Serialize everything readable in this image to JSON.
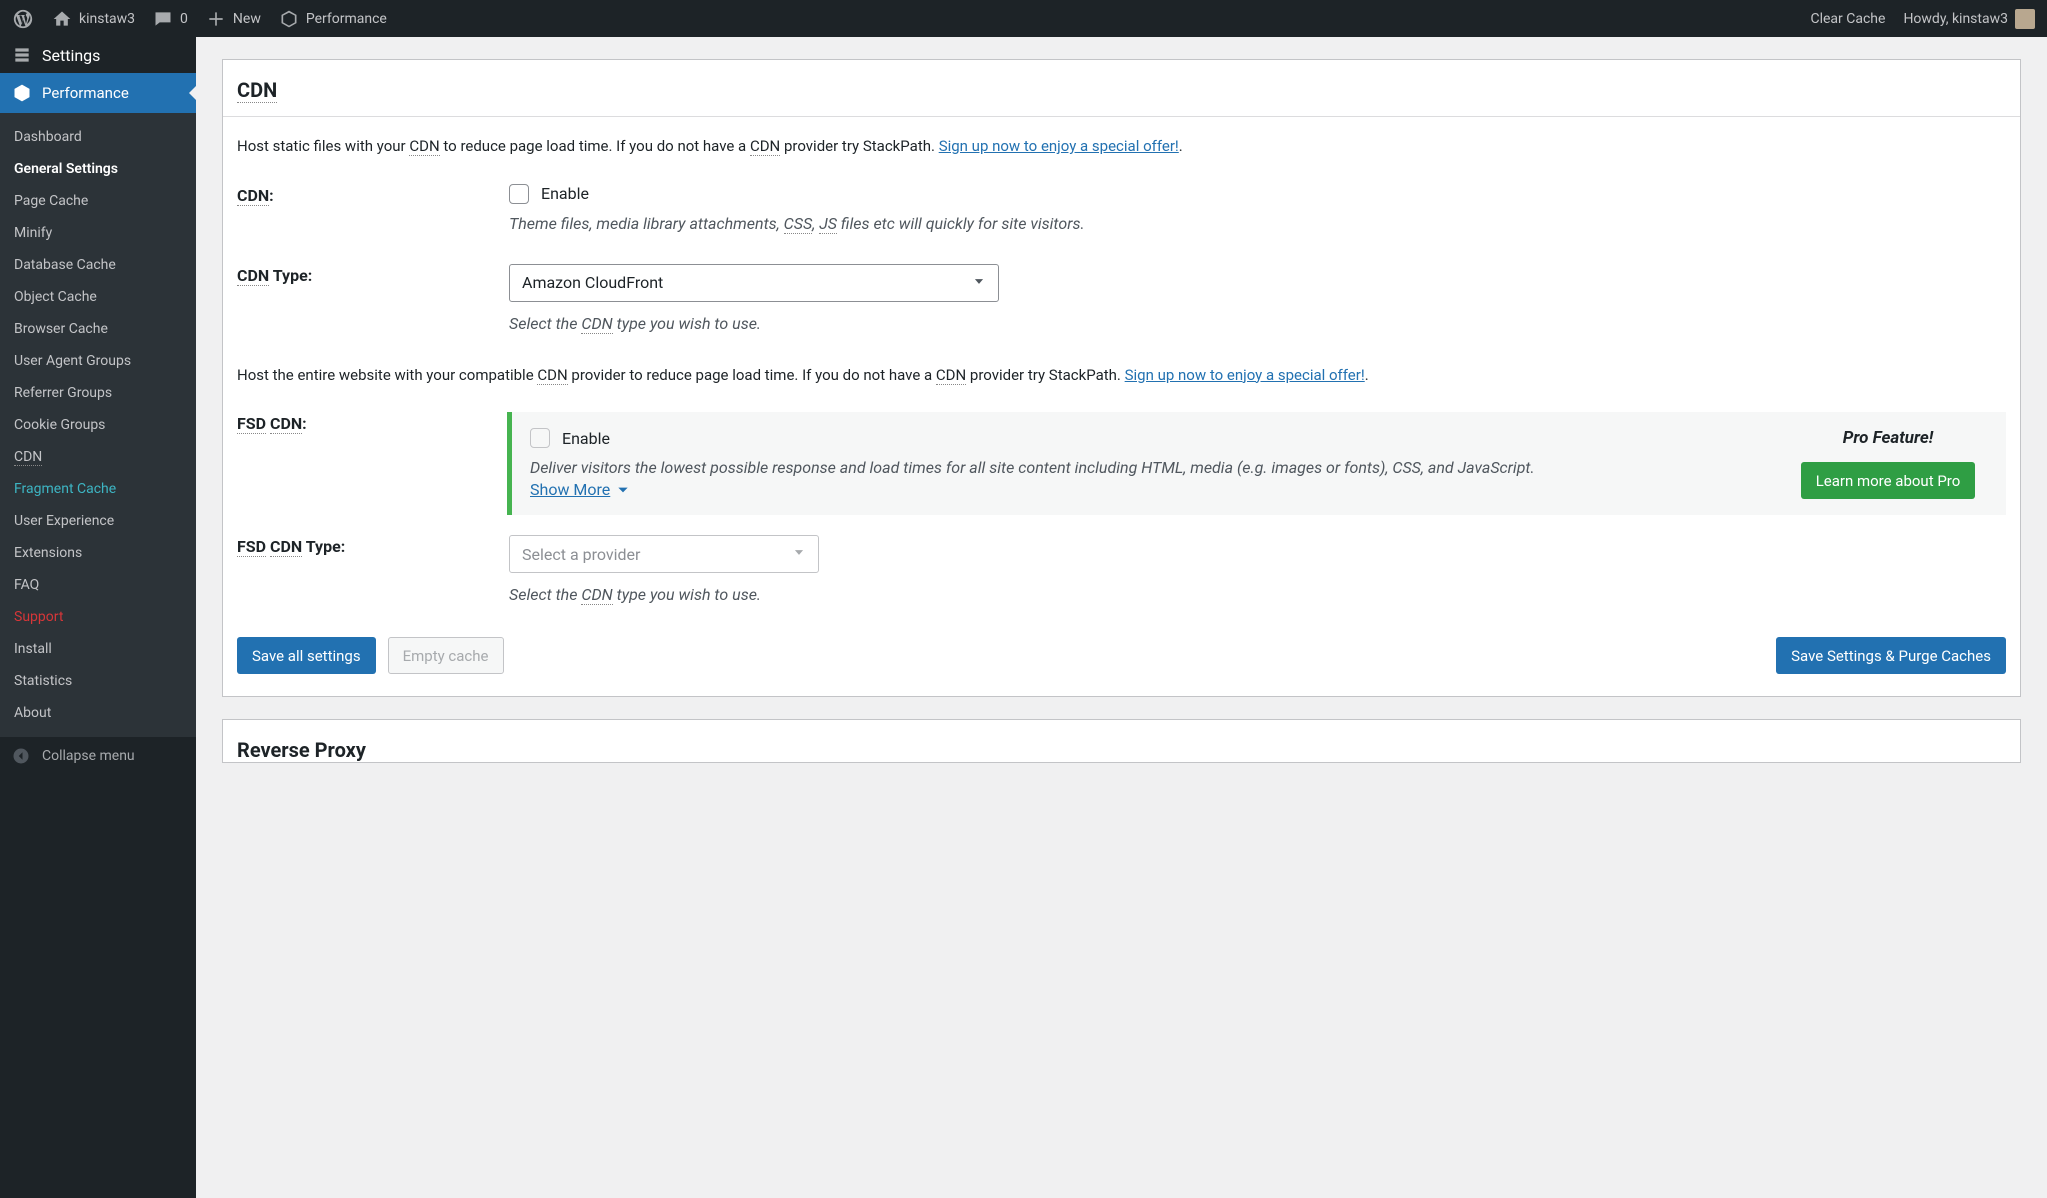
{
  "adminbar": {
    "site_name": "kinstaw3",
    "comment_count": "0",
    "new_label": "New",
    "performance": "Performance",
    "clear_cache": "Clear Cache",
    "howdy": "Howdy, kinstaw3"
  },
  "sidebar": {
    "header": "Settings",
    "active": "Performance",
    "items": [
      {
        "label": "Dashboard"
      },
      {
        "label": "General Settings",
        "current": true
      },
      {
        "label": "Page Cache"
      },
      {
        "label": "Minify"
      },
      {
        "label": "Database Cache"
      },
      {
        "label": "Object Cache"
      },
      {
        "label": "Browser Cache"
      },
      {
        "label": "User Agent Groups"
      },
      {
        "label": "Referrer Groups"
      },
      {
        "label": "Cookie Groups"
      },
      {
        "label": "CDN"
      },
      {
        "label": "Fragment Cache",
        "teal": true
      },
      {
        "label": "User Experience"
      },
      {
        "label": "Extensions"
      },
      {
        "label": "FAQ"
      },
      {
        "label": "Support",
        "red": true
      },
      {
        "label": "Install"
      },
      {
        "label": "Statistics"
      },
      {
        "label": "About"
      }
    ],
    "collapse": "Collapse menu"
  },
  "panel": {
    "title": "CDN",
    "intro_1a": "Host static files with your ",
    "intro_1b": " to reduce page load time. If you do not have a ",
    "intro_1c": " provider try StackPath. ",
    "abbr_cdn": "CDN",
    "signup_link": "Sign up now to enjoy a special offer!",
    "dot": ".",
    "cdn_label_pre": "CDN",
    "cdn_label_post": ":",
    "enable": "Enable",
    "cdn_help_a": "Theme files, media library attachments, ",
    "abbr_css": "CSS",
    "comma": ", ",
    "abbr_js": "JS",
    "cdn_help_b": " files etc will quickly for site visitors.",
    "cdn_type_label_pre": "CDN",
    "cdn_type_label_post": " Type:",
    "cdn_type_value": "Amazon CloudFront",
    "cdn_type_help_a": "Select the ",
    "cdn_type_help_b": " type you wish to use.",
    "intro_2a": "Host the entire website with your compatible ",
    "intro_2b": " provider to reduce page load time. If you do not have a ",
    "intro_2c": " provider try StackPath. ",
    "fsd_label_pre": "FSD",
    "fsd_label_mid": "CDN",
    "fsd_label_post": ":",
    "fsd_help": "Deliver visitors the lowest possible response and load times for all site content including HTML, media (e.g. images or fonts), CSS, and JavaScript.",
    "show_more": "Show More",
    "pro_feature": "Pro Feature!",
    "learn_pro": "Learn more about Pro",
    "fsd_type_label_pre": "FSD",
    "fsd_type_label_mid": "CDN",
    "fsd_type_label_post": " Type:",
    "fsd_type_placeholder": "Select a provider",
    "save_all": "Save all settings",
    "empty_cache": "Empty cache",
    "save_purge": "Save Settings & Purge Caches"
  },
  "next_panel": "Reverse Proxy"
}
